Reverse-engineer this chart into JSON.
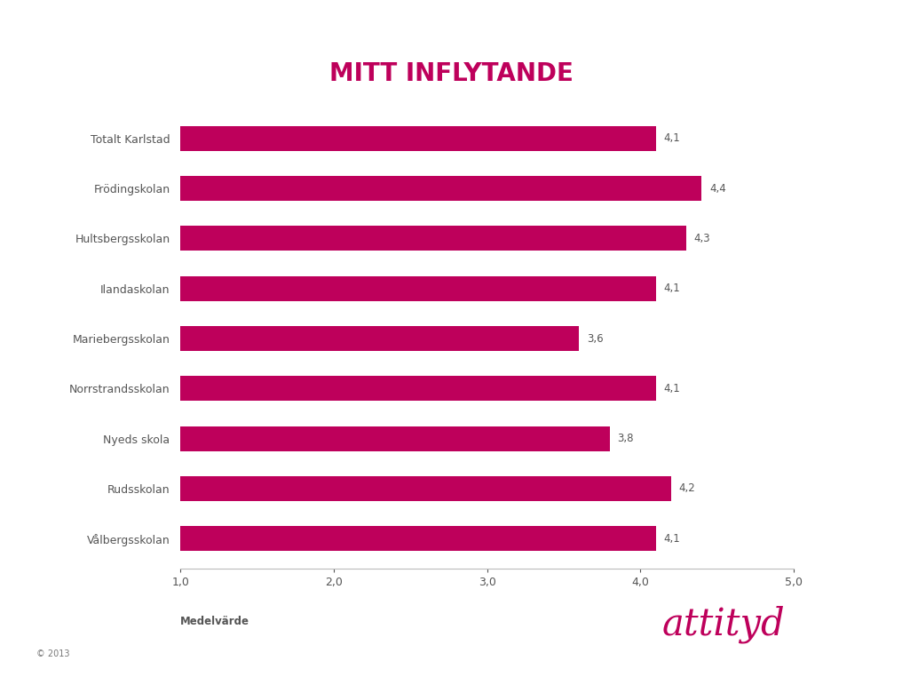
{
  "title": "MITT INFLYTANDE",
  "categories": [
    "Totalt Karlstad",
    "Frödingskolan",
    "Hultsbergsskolan",
    "Ilandaskolan",
    "Mariebergsskolan",
    "Norrstrandsskolan",
    "Nyeds skola",
    "Rudsskolan",
    "Vålbergsskolan"
  ],
  "values": [
    4.1,
    4.4,
    4.3,
    4.1,
    3.6,
    4.1,
    3.8,
    4.2,
    4.1
  ],
  "bar_color": "#BE005B",
  "xlabel": "Medelvärde",
  "xlim": [
    1.0,
    5.0
  ],
  "xticks": [
    1.0,
    2.0,
    3.0,
    4.0,
    5.0
  ],
  "xtick_labels": [
    "1,0",
    "2,0",
    "3,0",
    "4,0",
    "5,0"
  ],
  "title_color": "#BE005B",
  "title_fontsize": 20,
  "label_fontsize": 9,
  "value_fontsize": 8.5,
  "xlabel_fontsize": 8.5,
  "xlabel_fontweight": "bold",
  "tick_color": "#555555",
  "copyright_text": "© 2013",
  "background_color": "#ffffff",
  "bar_height": 0.5
}
